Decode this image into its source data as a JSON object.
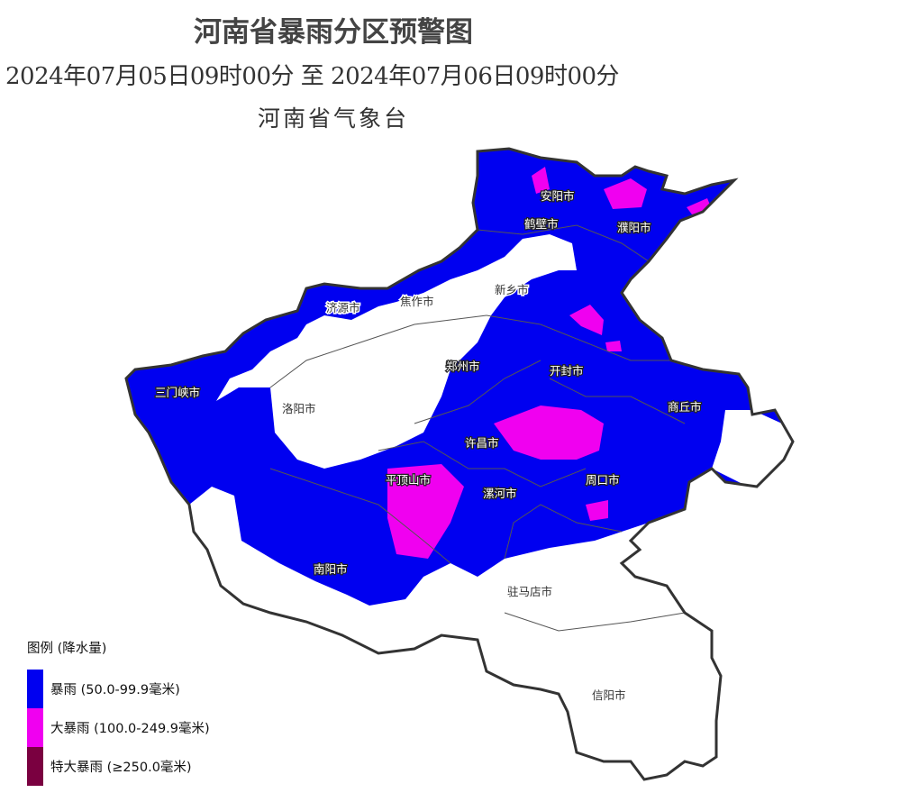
{
  "title": "河南省暴雨分区预警图",
  "period": "2024年07月05日09时00分 至 2024年07月06日09时00分",
  "agency": "河南省气象台",
  "colors": {
    "storm": "#0000f0",
    "heavy_storm": "#f000f0",
    "extreme_storm": "#7a0040",
    "none": "#ffffff",
    "border": "#333333"
  },
  "cities": [
    {
      "name": "安阳市",
      "warned": true
    },
    {
      "name": "鹤壁市",
      "warned": true
    },
    {
      "name": "濮阳市",
      "warned": true
    },
    {
      "name": "新乡市",
      "warned": false
    },
    {
      "name": "济源市",
      "warned": false
    },
    {
      "name": "焦作市",
      "warned": false
    },
    {
      "name": "郑州市",
      "warned": true
    },
    {
      "name": "开封市",
      "warned": true
    },
    {
      "name": "三门峡市",
      "warned": true
    },
    {
      "name": "洛阳市",
      "warned": false
    },
    {
      "name": "商丘市",
      "warned": true
    },
    {
      "name": "许昌市",
      "warned": true
    },
    {
      "name": "平顶山市",
      "warned": true
    },
    {
      "name": "漯河市",
      "warned": true
    },
    {
      "name": "周口市",
      "warned": true
    },
    {
      "name": "南阳市",
      "warned": true
    },
    {
      "name": "驻马店市",
      "warned": false
    },
    {
      "name": "信阳市",
      "warned": false
    }
  ],
  "legend": {
    "title": "图例 (降水量)",
    "items": [
      {
        "label": "暴雨 (50.0-99.9毫米)",
        "color": "#0000f0"
      },
      {
        "label": "大暴雨 (100.0-249.9毫米)",
        "color": "#f000f0"
      },
      {
        "label": "特大暴雨 (≥250.0毫米)",
        "color": "#7a0040"
      }
    ]
  }
}
